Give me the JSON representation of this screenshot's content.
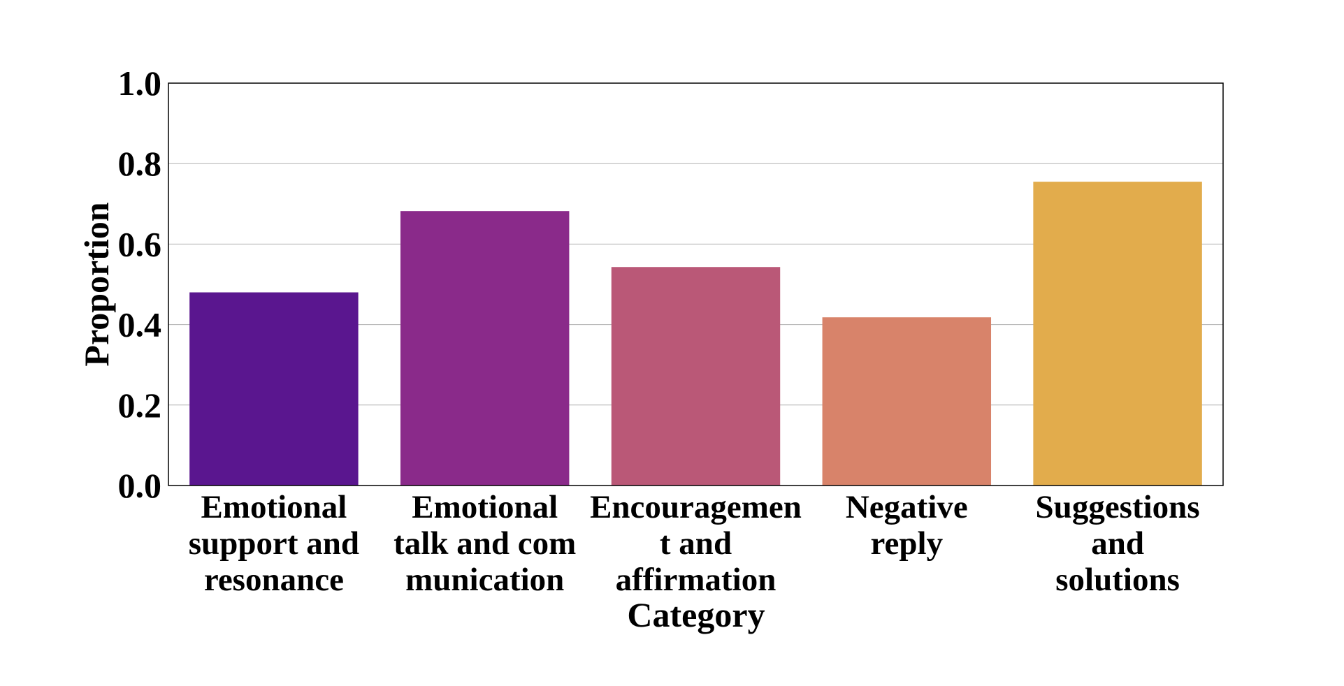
{
  "chart_data": {
    "type": "bar",
    "categories": [
      "Emotional support and resonance",
      "Emotional talk and communication",
      "Encouragement and affirmation",
      "Negative reply",
      "Suggestions and solutions"
    ],
    "category_label_lines": [
      [
        "Emotional",
        "support and",
        "resonance"
      ],
      [
        "Emotional",
        "talk and com",
        "munication"
      ],
      [
        "Encouragemen",
        "t and",
        "affirmation"
      ],
      [
        "Negative",
        "reply"
      ],
      [
        "Suggestions",
        "and",
        "solutions"
      ]
    ],
    "values": [
      0.48,
      0.682,
      0.543,
      0.418,
      0.755
    ],
    "colors": [
      "#5a168f",
      "#8a2a8a",
      "#ba5877",
      "#d8836a",
      "#e2ac4c"
    ],
    "xlabel": "Category",
    "ylabel": "Proportion",
    "ylim": [
      0,
      1.0
    ],
    "yticks": [
      "0.0",
      "0.2",
      "0.4",
      "0.6",
      "0.8",
      "1.0"
    ],
    "grid": "horizontal"
  }
}
